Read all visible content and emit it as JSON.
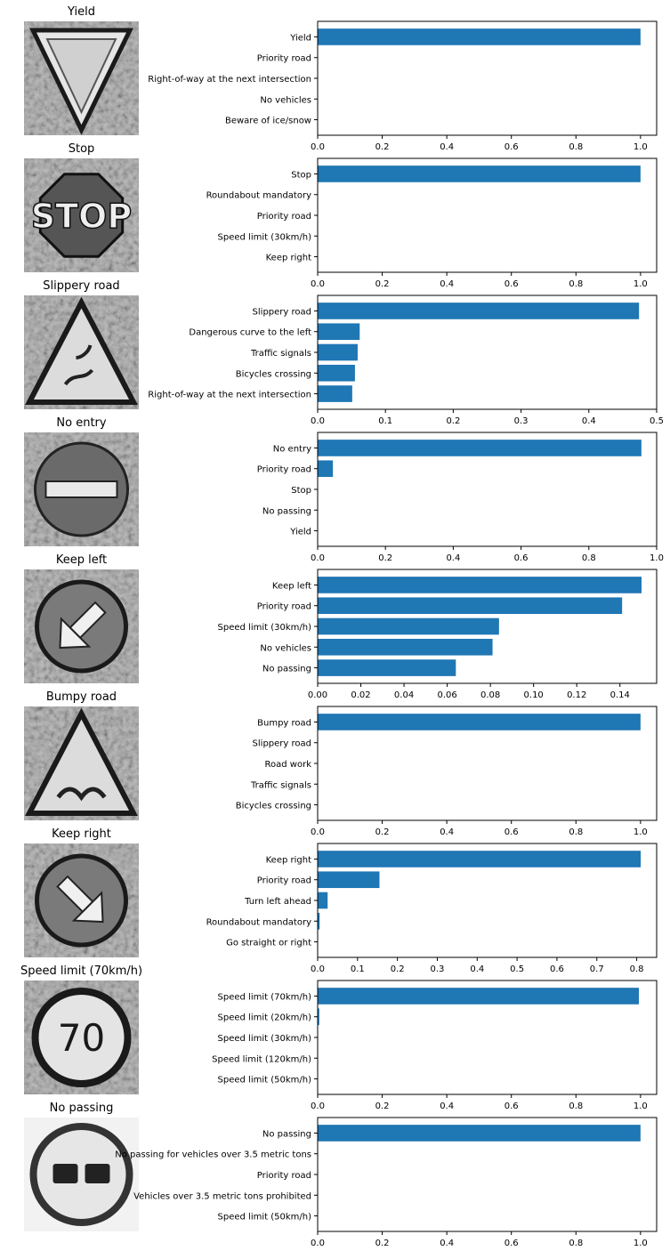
{
  "figure": {
    "rows": [
      {
        "title": "Yield",
        "sign": "yield"
      },
      {
        "title": "Stop",
        "sign": "stop"
      },
      {
        "title": "Slippery road",
        "sign": "slippery"
      },
      {
        "title": "No entry",
        "sign": "noentry"
      },
      {
        "title": "Keep left",
        "sign": "keepleft"
      },
      {
        "title": "Bumpy road",
        "sign": "bumpy"
      },
      {
        "title": "Keep right",
        "sign": "keepright"
      },
      {
        "title": "Speed limit (70km/h)",
        "sign": "speed70",
        "sign_text": "70"
      },
      {
        "title": "No passing",
        "sign": "nopassing"
      }
    ],
    "bar_color": "#1f77b4"
  },
  "chart_data": [
    {
      "type": "bar",
      "orientation": "horizontal",
      "title": "",
      "categories": [
        "Yield",
        "Priority road",
        "Right-of-way at the next intersection",
        "No vehicles",
        "Beware of ice/snow"
      ],
      "values": [
        1.0,
        0.0,
        0.0,
        0.0,
        0.0
      ],
      "xlim": [
        0,
        1.05
      ],
      "xticks": [
        0.0,
        0.2,
        0.4,
        0.6,
        0.8,
        1.0
      ],
      "tick_labels": [
        "0.0",
        "0.2",
        "0.4",
        "0.6",
        "0.8",
        "1.0"
      ]
    },
    {
      "type": "bar",
      "orientation": "horizontal",
      "title": "",
      "categories": [
        "Stop",
        "Roundabout mandatory",
        "Priority road",
        "Speed limit (30km/h)",
        "Keep right"
      ],
      "values": [
        1.0,
        0.0,
        0.0,
        0.0,
        0.0
      ],
      "xlim": [
        0,
        1.05
      ],
      "xticks": [
        0.0,
        0.2,
        0.4,
        0.6,
        0.8,
        1.0
      ],
      "tick_labels": [
        "0.0",
        "0.2",
        "0.4",
        "0.6",
        "0.8",
        "1.0"
      ]
    },
    {
      "type": "bar",
      "orientation": "horizontal",
      "title": "",
      "categories": [
        "Slippery road",
        "Dangerous curve to the left",
        "Traffic signals",
        "Bicycles crossing",
        "Right-of-way at the next intersection"
      ],
      "values": [
        0.474,
        0.062,
        0.059,
        0.055,
        0.051
      ],
      "xlim": [
        0,
        0.5
      ],
      "xticks": [
        0.0,
        0.1,
        0.2,
        0.3,
        0.4,
        0.5
      ],
      "tick_labels": [
        "0.0",
        "0.1",
        "0.2",
        "0.3",
        "0.4",
        "0.5"
      ]
    },
    {
      "type": "bar",
      "orientation": "horizontal",
      "title": "",
      "categories": [
        "No entry",
        "Priority road",
        "Stop",
        "No passing",
        "Yield"
      ],
      "values": [
        0.955,
        0.045,
        0.0,
        0.0,
        0.0
      ],
      "xlim": [
        0,
        1.0
      ],
      "xticks": [
        0.0,
        0.2,
        0.4,
        0.6,
        0.8,
        1.0
      ],
      "tick_labels": [
        "0.0",
        "0.2",
        "0.4",
        "0.6",
        "0.8",
        "1.0"
      ]
    },
    {
      "type": "bar",
      "orientation": "horizontal",
      "title": "",
      "categories": [
        "Keep left",
        "Priority road",
        "Speed limit (30km/h)",
        "No vehicles",
        "No passing"
      ],
      "values": [
        0.15,
        0.141,
        0.084,
        0.081,
        0.064
      ],
      "xlim": [
        0,
        0.157
      ],
      "xticks": [
        0.0,
        0.02,
        0.04,
        0.06,
        0.08,
        0.1,
        0.12,
        0.14
      ],
      "tick_labels": [
        "0.00",
        "0.02",
        "0.04",
        "0.06",
        "0.08",
        "0.10",
        "0.12",
        "0.14"
      ]
    },
    {
      "type": "bar",
      "orientation": "horizontal",
      "title": "",
      "categories": [
        "Bumpy road",
        "Slippery road",
        "Road work",
        "Traffic signals",
        "Bicycles crossing"
      ],
      "values": [
        1.0,
        0.0,
        0.0,
        0.0,
        0.0
      ],
      "xlim": [
        0,
        1.05
      ],
      "xticks": [
        0.0,
        0.2,
        0.4,
        0.6,
        0.8,
        1.0
      ],
      "tick_labels": [
        "0.0",
        "0.2",
        "0.4",
        "0.6",
        "0.8",
        "1.0"
      ]
    },
    {
      "type": "bar",
      "orientation": "horizontal",
      "title": "",
      "categories": [
        "Keep right",
        "Priority road",
        "Turn left ahead",
        "Roundabout mandatory",
        "Go straight or right"
      ],
      "values": [
        0.81,
        0.155,
        0.025,
        0.005,
        0.0
      ],
      "xlim": [
        0,
        0.85
      ],
      "xticks": [
        0.0,
        0.1,
        0.2,
        0.3,
        0.4,
        0.5,
        0.6,
        0.7,
        0.8
      ],
      "tick_labels": [
        "0.0",
        "0.1",
        "0.2",
        "0.3",
        "0.4",
        "0.5",
        "0.6",
        "0.7",
        "0.8"
      ]
    },
    {
      "type": "bar",
      "orientation": "horizontal",
      "title": "",
      "categories": [
        "Speed limit (70km/h)",
        "Speed limit (20km/h)",
        "Speed limit (30km/h)",
        "Speed limit (120km/h)",
        "Speed limit (50km/h)"
      ],
      "values": [
        0.995,
        0.005,
        0.0,
        0.0,
        0.0
      ],
      "xlim": [
        0,
        1.05
      ],
      "xticks": [
        0.0,
        0.2,
        0.4,
        0.6,
        0.8,
        1.0
      ],
      "tick_labels": [
        "0.0",
        "0.2",
        "0.4",
        "0.6",
        "0.8",
        "1.0"
      ]
    },
    {
      "type": "bar",
      "orientation": "horizontal",
      "title": "",
      "categories": [
        "No passing",
        "No passing for vehicles over 3.5 metric tons",
        "Priority road",
        "Vehicles over 3.5 metric tons prohibited",
        "Speed limit (50km/h)"
      ],
      "values": [
        1.0,
        0.0,
        0.0,
        0.0,
        0.0
      ],
      "xlim": [
        0,
        1.05
      ],
      "xticks": [
        0.0,
        0.2,
        0.4,
        0.6,
        0.8,
        1.0
      ],
      "tick_labels": [
        "0.0",
        "0.2",
        "0.4",
        "0.6",
        "0.8",
        "1.0"
      ]
    }
  ]
}
